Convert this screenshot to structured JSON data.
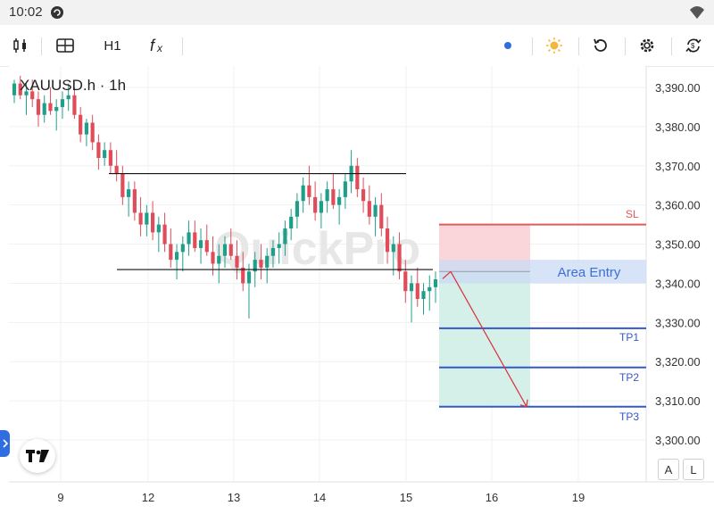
{
  "status_bar": {
    "time": "10:02"
  },
  "toolbar": {
    "timeframe": "H1",
    "icons": [
      "candles-icon",
      "indicators-icon",
      "formula-icon",
      "dot-icon",
      "sun-icon",
      "refresh-icon",
      "settings-icon",
      "sync-icon"
    ],
    "accent_color": "#2f6de0"
  },
  "chart": {
    "symbol_label": "XAUUSD.h · 1h",
    "watermark": "QuickPro",
    "area_entry_label": "Area Entry",
    "sl_label": "SL",
    "tp_labels": [
      "TP1",
      "TP2",
      "TP3"
    ],
    "scale_buttons": [
      "A",
      "L"
    ],
    "colors": {
      "up": "#1f9f8a",
      "down": "#e04c59",
      "sl_zone": "#f9d2d6",
      "tp_zone": "#cfeee6",
      "entry_zone": "#c9dbf5",
      "tp_line": "#3558c9",
      "sl_line": "#e05a5a"
    }
  },
  "chart_data": {
    "type": "candlestick",
    "title": "",
    "y_ticks": [
      "3,390.00",
      "3,380.00",
      "3,370.00",
      "3,360.00",
      "3,350.00",
      "3,340.00",
      "3,330.00",
      "3,320.00",
      "3,310.00",
      "3,300.00"
    ],
    "x_ticks": [
      "9",
      "12",
      "13",
      "14",
      "15",
      "16",
      "19"
    ],
    "ylim": [
      3296,
      3394
    ],
    "levels": {
      "sl": 3355,
      "entry_top": 3346,
      "entry_bottom": 3340,
      "entry": 3343,
      "tp1": 3328.5,
      "tp2": 3318.5,
      "tp3": 3308.5
    },
    "resistance": 3368,
    "support": 3343.5,
    "projection": {
      "from": 3343,
      "to": 3308.5
    },
    "candles": [
      [
        3388,
        3392,
        3386,
        3391
      ],
      [
        3391,
        3393,
        3387,
        3388
      ],
      [
        3388,
        3391,
        3383,
        3389
      ],
      [
        3389,
        3392,
        3385,
        3387
      ],
      [
        3387,
        3389,
        3380,
        3383
      ],
      [
        3383,
        3388,
        3381,
        3386
      ],
      [
        3386,
        3390,
        3383,
        3384
      ],
      [
        3384,
        3387,
        3379,
        3385
      ],
      [
        3385,
        3389,
        3382,
        3387
      ],
      [
        3387,
        3391,
        3384,
        3388
      ],
      [
        3388,
        3390,
        3382,
        3383
      ],
      [
        3383,
        3385,
        3376,
        3378
      ],
      [
        3378,
        3382,
        3375,
        3381
      ],
      [
        3381,
        3383,
        3374,
        3376
      ],
      [
        3376,
        3378,
        3369,
        3372
      ],
      [
        3372,
        3376,
        3370,
        3374
      ],
      [
        3374,
        3376,
        3368,
        3370
      ],
      [
        3370,
        3374,
        3366,
        3368
      ],
      [
        3368,
        3370,
        3360,
        3362
      ],
      [
        3362,
        3366,
        3357,
        3364
      ],
      [
        3364,
        3366,
        3356,
        3358
      ],
      [
        3358,
        3362,
        3352,
        3355
      ],
      [
        3355,
        3360,
        3352,
        3358
      ],
      [
        3358,
        3361,
        3351,
        3353
      ],
      [
        3353,
        3357,
        3348,
        3355
      ],
      [
        3355,
        3358,
        3348,
        3350
      ],
      [
        3350,
        3354,
        3344,
        3346
      ],
      [
        3346,
        3350,
        3341,
        3348
      ],
      [
        3348,
        3352,
        3343,
        3350
      ],
      [
        3350,
        3356,
        3347,
        3353
      ],
      [
        3353,
        3356,
        3348,
        3349
      ],
      [
        3349,
        3354,
        3345,
        3351
      ],
      [
        3351,
        3355,
        3347,
        3348
      ],
      [
        3348,
        3352,
        3342,
        3345
      ],
      [
        3345,
        3350,
        3340,
        3347
      ],
      [
        3347,
        3352,
        3344,
        3350
      ],
      [
        3350,
        3354,
        3346,
        3347
      ],
      [
        3347,
        3351,
        3341,
        3344
      ],
      [
        3344,
        3348,
        3338,
        3340
      ],
      [
        3340,
        3345,
        3331,
        3343
      ],
      [
        3343,
        3348,
        3339,
        3346
      ],
      [
        3346,
        3350,
        3341,
        3344
      ],
      [
        3344,
        3349,
        3340,
        3347
      ],
      [
        3347,
        3351,
        3344,
        3349
      ],
      [
        3349,
        3353,
        3345,
        3350
      ],
      [
        3350,
        3356,
        3347,
        3354
      ],
      [
        3354,
        3359,
        3351,
        3357
      ],
      [
        3357,
        3363,
        3354,
        3361
      ],
      [
        3361,
        3367,
        3358,
        3365
      ],
      [
        3365,
        3370,
        3360,
        3362
      ],
      [
        3362,
        3366,
        3356,
        3358
      ],
      [
        3358,
        3363,
        3354,
        3361
      ],
      [
        3361,
        3366,
        3358,
        3364
      ],
      [
        3364,
        3368,
        3359,
        3360
      ],
      [
        3360,
        3364,
        3355,
        3362
      ],
      [
        3362,
        3368,
        3359,
        3366
      ],
      [
        3366,
        3374,
        3363,
        3370
      ],
      [
        3370,
        3372,
        3362,
        3364
      ],
      [
        3364,
        3367,
        3358,
        3361
      ],
      [
        3361,
        3365,
        3355,
        3357
      ],
      [
        3357,
        3362,
        3352,
        3360
      ],
      [
        3360,
        3363,
        3352,
        3354
      ],
      [
        3354,
        3357,
        3345,
        3348
      ],
      [
        3348,
        3352,
        3342,
        3350
      ],
      [
        3350,
        3353,
        3341,
        3343
      ],
      [
        3343,
        3346,
        3335,
        3338
      ],
      [
        3338,
        3342,
        3330,
        3340
      ],
      [
        3340,
        3344,
        3334,
        3336
      ],
      [
        3336,
        3340,
        3332,
        3338
      ],
      [
        3338,
        3342,
        3333,
        3339
      ],
      [
        3339,
        3343,
        3335,
        3341
      ]
    ]
  }
}
